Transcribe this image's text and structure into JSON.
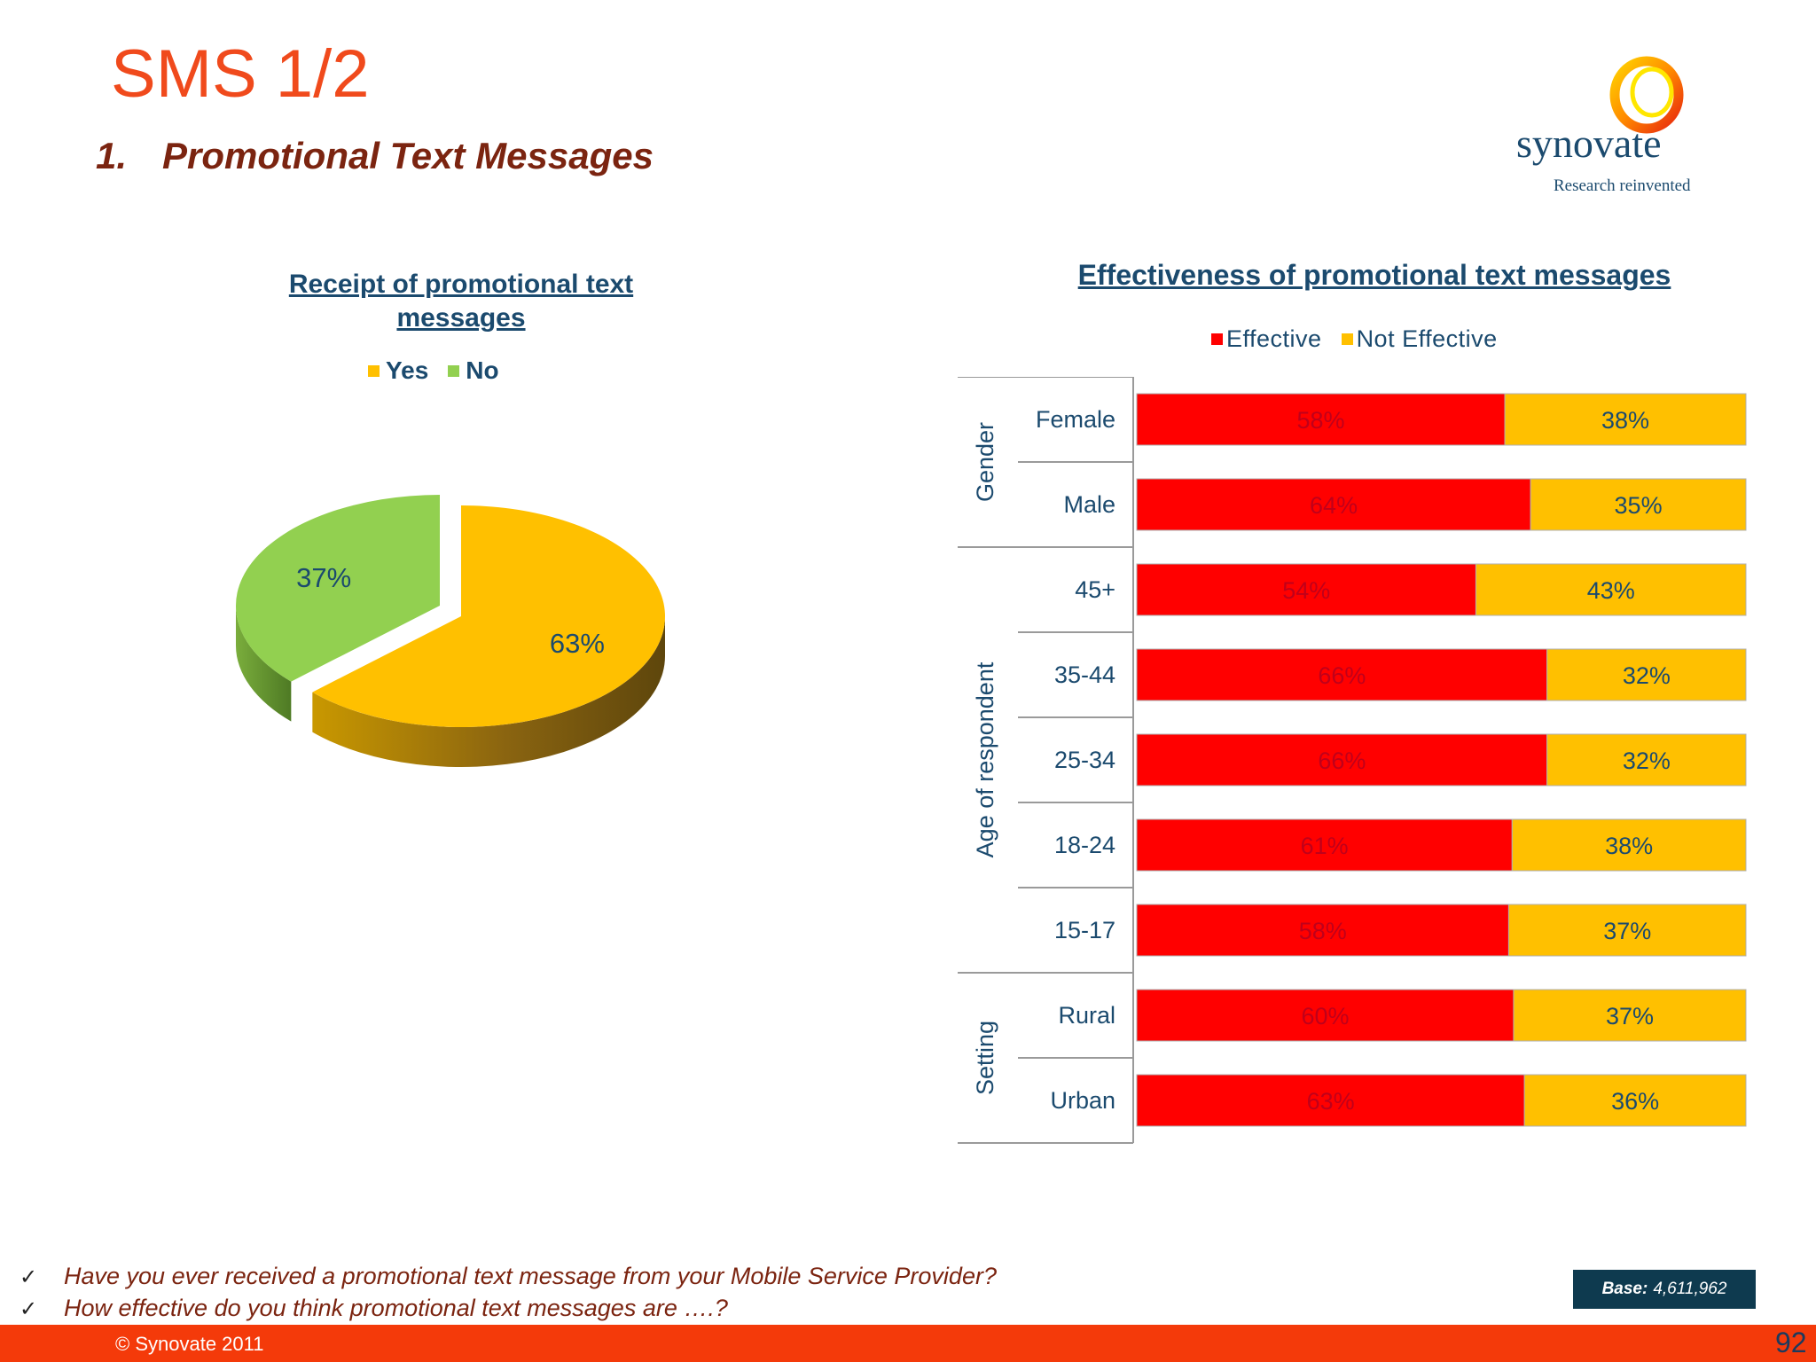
{
  "slide": {
    "title": "SMS 1/2",
    "subtitle_number": "1.",
    "subtitle_text": "Promotional Text Messages"
  },
  "logo": {
    "name": "synovate",
    "tagline": "Research reinvented"
  },
  "colors": {
    "yes": "#ffc000",
    "no": "#92d050",
    "effective": "#ff0000",
    "not_effective": "#ffc000",
    "title_orange": "#f04a1c",
    "footer_bar": "#f43a0a",
    "text_navy": "#1b4a6e"
  },
  "chart_data": [
    {
      "type": "pie",
      "title": "Receipt of promotional text messages",
      "legend_position": "top",
      "slices": [
        {
          "name": "Yes",
          "value": 63,
          "label": "63%"
        },
        {
          "name": "No",
          "value": 37,
          "label": "37%"
        }
      ]
    },
    {
      "type": "bar",
      "orientation": "horizontal",
      "stacked": true,
      "title": "Effectiveness of promotional text messages",
      "legend_position": "top",
      "series_names": [
        "Effective",
        "Not Effective"
      ],
      "groups": [
        {
          "name": "Gender",
          "rows": [
            {
              "label": "Female",
              "effective": 58,
              "not_effective": 38
            },
            {
              "label": "Male",
              "effective": 64,
              "not_effective": 35
            }
          ]
        },
        {
          "name": "Age of respondent",
          "rows": [
            {
              "label": "45+",
              "effective": 54,
              "not_effective": 43
            },
            {
              "label": "35-44",
              "effective": 66,
              "not_effective": 32
            },
            {
              "label": "25-34",
              "effective": 66,
              "not_effective": 32
            },
            {
              "label": "18-24",
              "effective": 61,
              "not_effective": 38
            },
            {
              "label": "15-17",
              "effective": 58,
              "not_effective": 37
            }
          ]
        },
        {
          "name": "Setting",
          "rows": [
            {
              "label": "Rural",
              "effective": 60,
              "not_effective": 37
            },
            {
              "label": "Urban",
              "effective": 63,
              "not_effective": 36
            }
          ]
        }
      ]
    }
  ],
  "questions": [
    "Have you ever received a promotional text message from your Mobile Service Provider?",
    "How effective do you think promotional text messages are ….?"
  ],
  "base": {
    "label": "Base:",
    "value": "4,611,962"
  },
  "footer": {
    "copyright": "© Synovate 2011",
    "page_number": "92"
  }
}
